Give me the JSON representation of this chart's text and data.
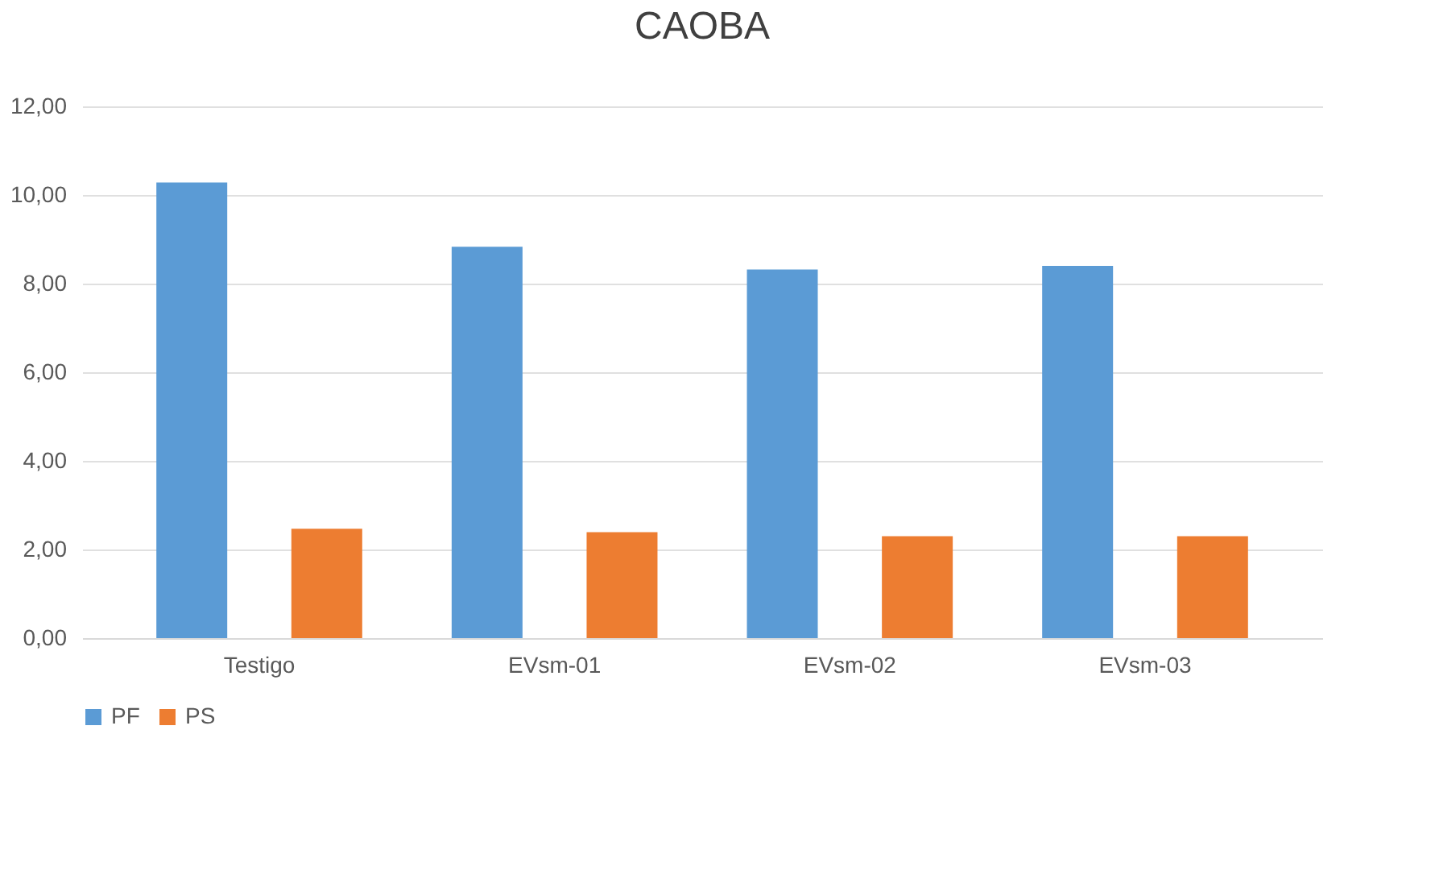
{
  "chart_data": {
    "type": "bar",
    "title": "CAOBA",
    "categories": [
      "Testigo",
      "EVsm-01",
      "EVsm-02",
      "EVsm-03"
    ],
    "series": [
      {
        "name": "PF",
        "color": "#5b9bd5",
        "values": [
          10.28,
          8.83,
          8.32,
          8.4
        ]
      },
      {
        "name": "PS",
        "color": "#ed7d31",
        "values": [
          2.47,
          2.39,
          2.3,
          2.3
        ]
      }
    ],
    "ylim": [
      0,
      12
    ],
    "yticks": [
      {
        "value": 0,
        "label": "0,00"
      },
      {
        "value": 2,
        "label": "2,00"
      },
      {
        "value": 4,
        "label": "4,00"
      },
      {
        "value": 6,
        "label": "6,00"
      },
      {
        "value": 8,
        "label": "8,00"
      },
      {
        "value": 10,
        "label": "10,00"
      },
      {
        "value": 12,
        "label": "12,00"
      }
    ],
    "grid": "y",
    "legend": "bottom"
  }
}
